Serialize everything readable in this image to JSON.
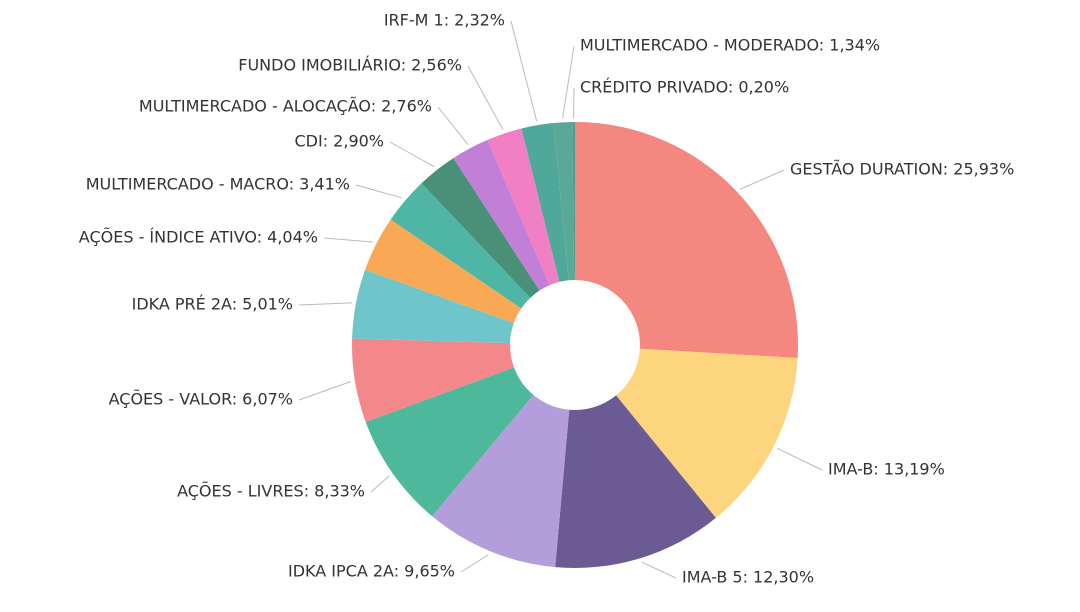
{
  "chart_data": {
    "type": "pie",
    "values": [
      25.93,
      13.19,
      12.3,
      9.65,
      8.33,
      6.07,
      5.01,
      4.04,
      3.41,
      2.9,
      2.76,
      2.56,
      2.32,
      1.34,
      0.2
    ],
    "value_labels": [
      "GESTÃO DURATION: 25,93%",
      "IMA-B: 13,19%",
      "IMA-B 5: 12,30%",
      "IDKA IPCA 2A: 9,65%",
      "AÇÕES - LIVRES: 8,33%",
      "AÇÕES - VALOR: 6,07%",
      "IDKA PRÉ 2A: 5,01%",
      "AÇÕES - ÍNDICE ATIVO: 4,04%",
      "MULTIMERCADO - MACRO: 3,41%",
      "CDI: 2,90%",
      "MULTIMERCADO - ALOCAÇÃO: 2,76%",
      "FUNDO IMOBILIÁRIO: 2,56%",
      "IRF-M 1: 2,32%",
      "MULTIMERCADO - MODERADO: 1,34%",
      "CRÉDITO PRIVADO: 0,20%"
    ],
    "colors": [
      "#f4877f",
      "#fdd57e",
      "#6b5b95",
      "#b39ddb",
      "#4db89a",
      "#f4878a",
      "#6ec6ca",
      "#f9a856",
      "#4fb5a5",
      "#4a8f78",
      "#c17fd8",
      "#f07fc4",
      "#4fa89a",
      "#5aa897",
      "#4f9e8c"
    ],
    "donut": true
  }
}
